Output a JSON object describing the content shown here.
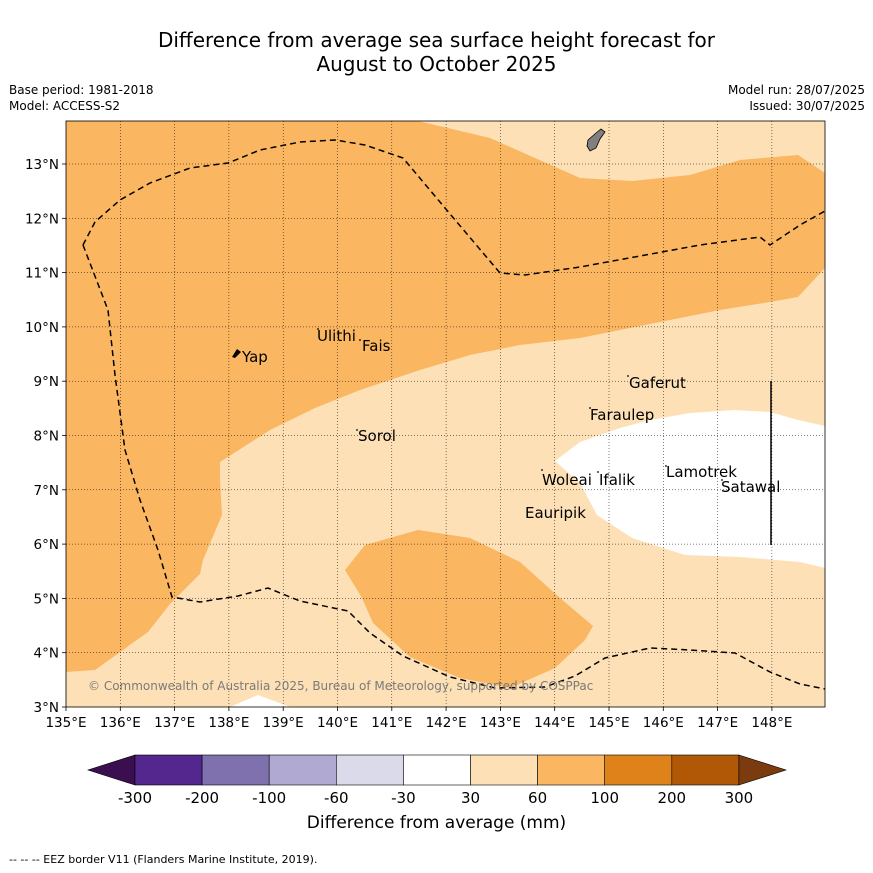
{
  "title_line1": "Difference from average sea surface height forecast for",
  "title_line2": "August to October 2025",
  "meta_left": [
    "Base period: 1981-2018",
    "Model: ACCESS-S2"
  ],
  "meta_right": [
    "Model run: 28/07/2025",
    "Issued: 30/07/2025"
  ],
  "copyright": "© Commonwealth of Australia 2025, Bureau of Meteorology, supported by COSPPac",
  "lon_ticks": [
    "135°E",
    "136°E",
    "137°E",
    "138°E",
    "139°E",
    "140°E",
    "141°E",
    "142°E",
    "143°E",
    "144°E",
    "145°E",
    "146°E",
    "147°E",
    "148°E"
  ],
  "lat_ticks": [
    "3°N",
    "4°N",
    "5°N",
    "6°N",
    "7°N",
    "8°N",
    "9°N",
    "10°N",
    "11°N",
    "12°N",
    "13°N"
  ],
  "places": [
    {
      "name": "Yap"
    },
    {
      "name": "Ulithi"
    },
    {
      "name": "Fais"
    },
    {
      "name": "Sorol"
    },
    {
      "name": "Gaferut"
    },
    {
      "name": "Faraulep"
    },
    {
      "name": "Woleai"
    },
    {
      "name": "Ifalik"
    },
    {
      "name": "Lamotrek"
    },
    {
      "name": "Satawal"
    },
    {
      "name": "Eauripik"
    }
  ],
  "colorbar": {
    "labels": [
      "-300",
      "-200",
      "-100",
      "-60",
      "-30",
      "30",
      "60",
      "100",
      "200",
      "300"
    ],
    "colors": [
      "#3b0f4f",
      "#54278f",
      "#7f71ad",
      "#b0aad3",
      "#dadaeb",
      "#ffffff",
      "#fde0b6",
      "#fab660",
      "#e0821a",
      "#b05806",
      "#7b3b0e"
    ],
    "title": "Difference from average (mm)"
  },
  "legend_note": "-- -- -- EEZ border V11 (Flanders Marine Institute, 2019)."
}
